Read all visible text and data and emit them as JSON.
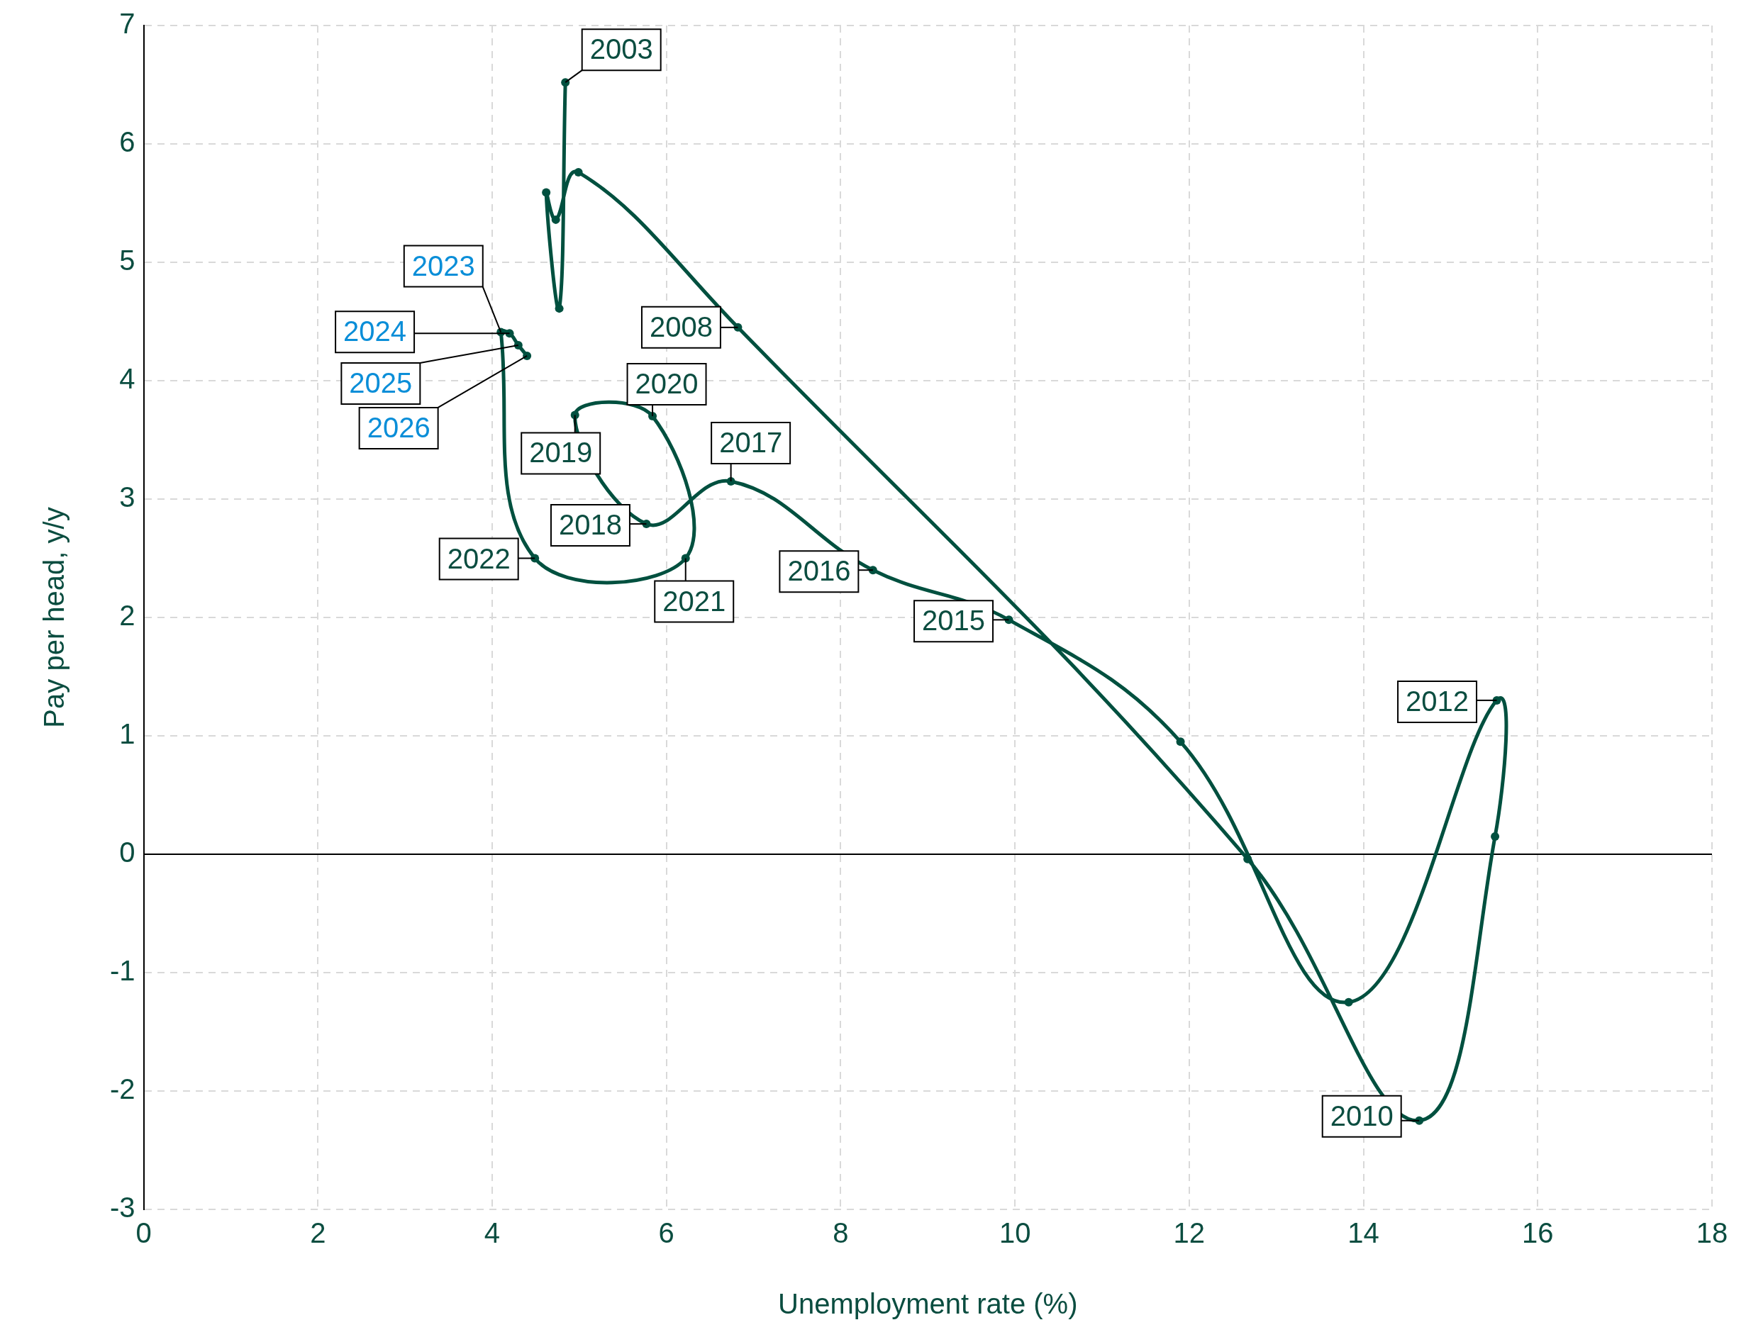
{
  "chart_data": {
    "type": "line",
    "xlabel": "Unemployment rate (%)",
    "ylabel": "Pay per head, y/y",
    "x": [
      4.84,
      4.77,
      4.62,
      4.73,
      4.99,
      6.82,
      12.67,
      14.64,
      15.51,
      15.53,
      13.83,
      11.9,
      9.93,
      8.37,
      6.74,
      5.77,
      4.95,
      5.84,
      6.22,
      4.49,
      4.1,
      4.2,
      4.3,
      4.4
    ],
    "series": [
      {
        "color": "#00503f",
        "values": [
          6.52,
          4.61,
          5.59,
          5.36,
          5.76,
          4.45,
          -0.04,
          -2.25,
          0.15,
          1.3,
          -1.25,
          0.95,
          1.98,
          2.4,
          3.15,
          2.79,
          3.71,
          3.7,
          2.5,
          2.5,
          4.41,
          4.4,
          4.3,
          4.21
        ]
      }
    ],
    "xlim": [
      0,
      18
    ],
    "xticks": [
      0,
      2,
      4,
      6,
      8,
      10,
      12,
      14,
      16,
      18
    ],
    "ylim": [
      -3,
      7
    ],
    "yticks": [
      -3,
      -2,
      -1,
      0,
      1,
      2,
      3,
      4,
      5,
      6,
      7
    ],
    "grid": true,
    "marker": "circle",
    "ref_lines": [
      {
        "axis": "y",
        "value": 0,
        "color": "#000000"
      }
    ],
    "annotations": [
      {
        "text": "2003",
        "x": 4.84,
        "y": 6.52
      },
      {
        "text": "2008",
        "x": 6.82,
        "y": 4.45
      },
      {
        "text": "2010",
        "x": 14.64,
        "y": -2.25
      },
      {
        "text": "2012",
        "x": 15.53,
        "y": 1.3
      },
      {
        "text": "2015",
        "x": 9.93,
        "y": 1.98
      },
      {
        "text": "2016",
        "x": 8.37,
        "y": 2.4
      },
      {
        "text": "2017",
        "x": 6.74,
        "y": 3.15
      },
      {
        "text": "2018",
        "x": 5.77,
        "y": 2.79
      },
      {
        "text": "2019",
        "x": 4.95,
        "y": 3.71
      },
      {
        "text": "2020",
        "x": 5.84,
        "y": 3.7
      },
      {
        "text": "2021",
        "x": 6.22,
        "y": 2.5
      },
      {
        "text": "2022",
        "x": 4.49,
        "y": 2.5
      },
      {
        "text": "2023",
        "x": 4.1,
        "y": 4.41
      },
      {
        "text": "2024",
        "x": 4.2,
        "y": 4.4
      },
      {
        "text": "2025",
        "x": 4.3,
        "y": 4.3
      },
      {
        "text": "2026",
        "x": 4.4,
        "y": 4.21
      }
    ]
  }
}
